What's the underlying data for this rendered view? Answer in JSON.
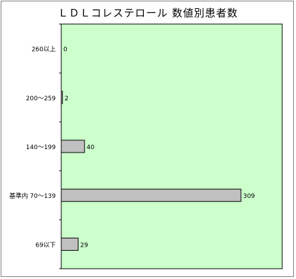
{
  "chart_data": {
    "type": "bar",
    "orientation": "horizontal",
    "title": "ＬＤＬコレステロール 数値別患者数",
    "xlabel": "",
    "ylabel": "",
    "categories": [
      "260以上",
      "200～259",
      "140～199",
      "基準内 70～139",
      "69以下"
    ],
    "values": [
      0,
      2,
      40,
      309,
      29
    ],
    "xlim": [
      0,
      380
    ],
    "grid": false,
    "legend": "none",
    "data_labels": true
  },
  "colors": {
    "plot_background": "#ccffcc",
    "bar_fill": "#c0c0c0",
    "bar_stroke": "#000000",
    "frame_border": "#7f7f7f"
  }
}
